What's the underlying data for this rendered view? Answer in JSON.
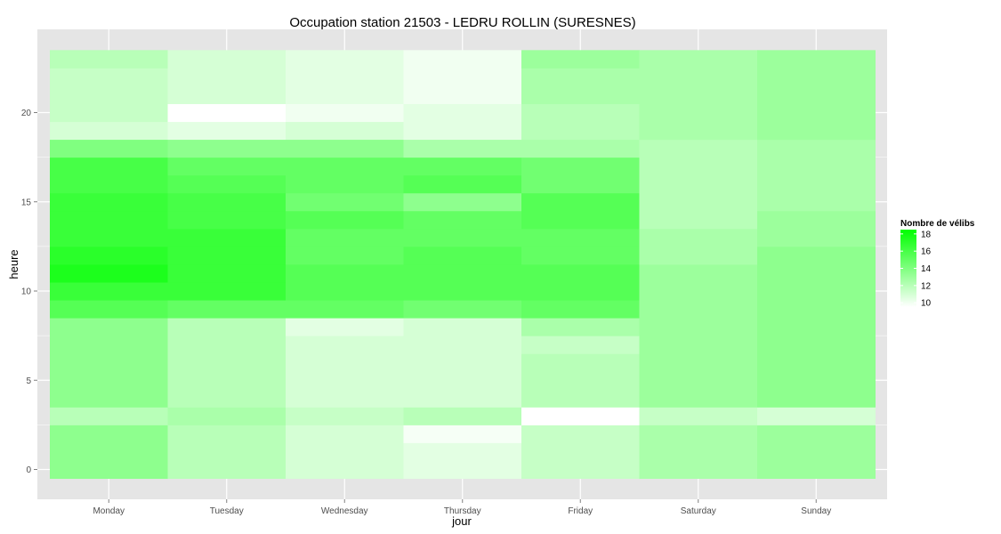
{
  "chart_data": {
    "type": "heatmap",
    "title": "Occupation station 21503 - LEDRU ROLLIN (SURESNES)",
    "xlabel": "jour",
    "ylabel": "heure",
    "categories": [
      "Monday",
      "Tuesday",
      "Wednesday",
      "Thursday",
      "Friday",
      "Saturday",
      "Sunday"
    ],
    "y": [
      0,
      1,
      2,
      3,
      4,
      5,
      6,
      7,
      8,
      9,
      10,
      11,
      12,
      13,
      14,
      15,
      16,
      17,
      18,
      19,
      20,
      21,
      22,
      23
    ],
    "yticks": [
      0,
      5,
      10,
      15,
      20
    ],
    "ylim": [
      -1,
      24
    ],
    "grid": true,
    "values": [
      [
        13.5,
        13.5,
        13.5,
        12.0,
        13.5,
        13.5,
        13.5,
        13.5,
        13.5,
        15.5,
        16.5,
        17.5,
        17.0,
        16.5,
        16.5,
        16.5,
        16.0,
        16.0,
        14.0,
        11.0,
        11.5,
        11.5,
        11.5,
        12.0
      ],
      [
        12.0,
        12.0,
        12.0,
        12.5,
        12.0,
        12.0,
        12.0,
        12.0,
        12.0,
        15.0,
        16.5,
        16.5,
        16.5,
        16.5,
        16.0,
        16.0,
        15.5,
        15.0,
        13.5,
        10.5,
        9.5,
        11.0,
        11.0,
        11.0
      ],
      [
        11.0,
        11.0,
        11.0,
        11.5,
        11.0,
        11.0,
        11.0,
        11.0,
        10.5,
        15.0,
        15.5,
        15.5,
        15.0,
        15.0,
        15.5,
        14.5,
        15.0,
        15.0,
        13.5,
        11.0,
        10.0,
        10.5,
        10.5,
        10.5
      ],
      [
        10.5,
        10.5,
        9.8,
        12.0,
        11.0,
        11.0,
        11.0,
        11.0,
        11.0,
        14.5,
        15.5,
        15.5,
        15.5,
        15.0,
        15.0,
        13.5,
        15.5,
        15.0,
        12.5,
        10.5,
        10.5,
        10.0,
        10.0,
        10.0
      ],
      [
        11.5,
        11.5,
        11.5,
        9.5,
        12.0,
        12.0,
        12.0,
        11.5,
        12.5,
        15.0,
        15.5,
        15.5,
        15.0,
        15.0,
        15.5,
        15.5,
        14.5,
        14.5,
        12.5,
        12.0,
        12.0,
        12.5,
        12.5,
        13.0
      ],
      [
        12.5,
        12.5,
        12.5,
        11.5,
        13.0,
        13.0,
        13.0,
        13.0,
        13.0,
        13.0,
        13.0,
        13.0,
        12.5,
        12.5,
        12.0,
        12.0,
        12.0,
        12.0,
        12.0,
        12.5,
        12.5,
        12.5,
        12.5,
        12.5
      ],
      [
        13.0,
        13.0,
        13.0,
        11.0,
        13.5,
        13.5,
        13.5,
        13.5,
        13.5,
        13.5,
        13.5,
        13.5,
        13.5,
        13.0,
        13.0,
        12.5,
        12.5,
        12.5,
        12.5,
        13.0,
        13.0,
        13.0,
        13.0,
        13.0
      ]
    ],
    "legend": {
      "title": "Nombre de vélibs",
      "ticks": [
        10,
        12,
        14,
        16,
        18
      ],
      "range": [
        9.5,
        18.5
      ],
      "low_color": "#ffffff",
      "high_color": "#00ff00",
      "position": "right"
    },
    "colors": {
      "panel": "#e5e5e5",
      "grid": "#ffffff",
      "text": "#4d4d4d"
    }
  }
}
